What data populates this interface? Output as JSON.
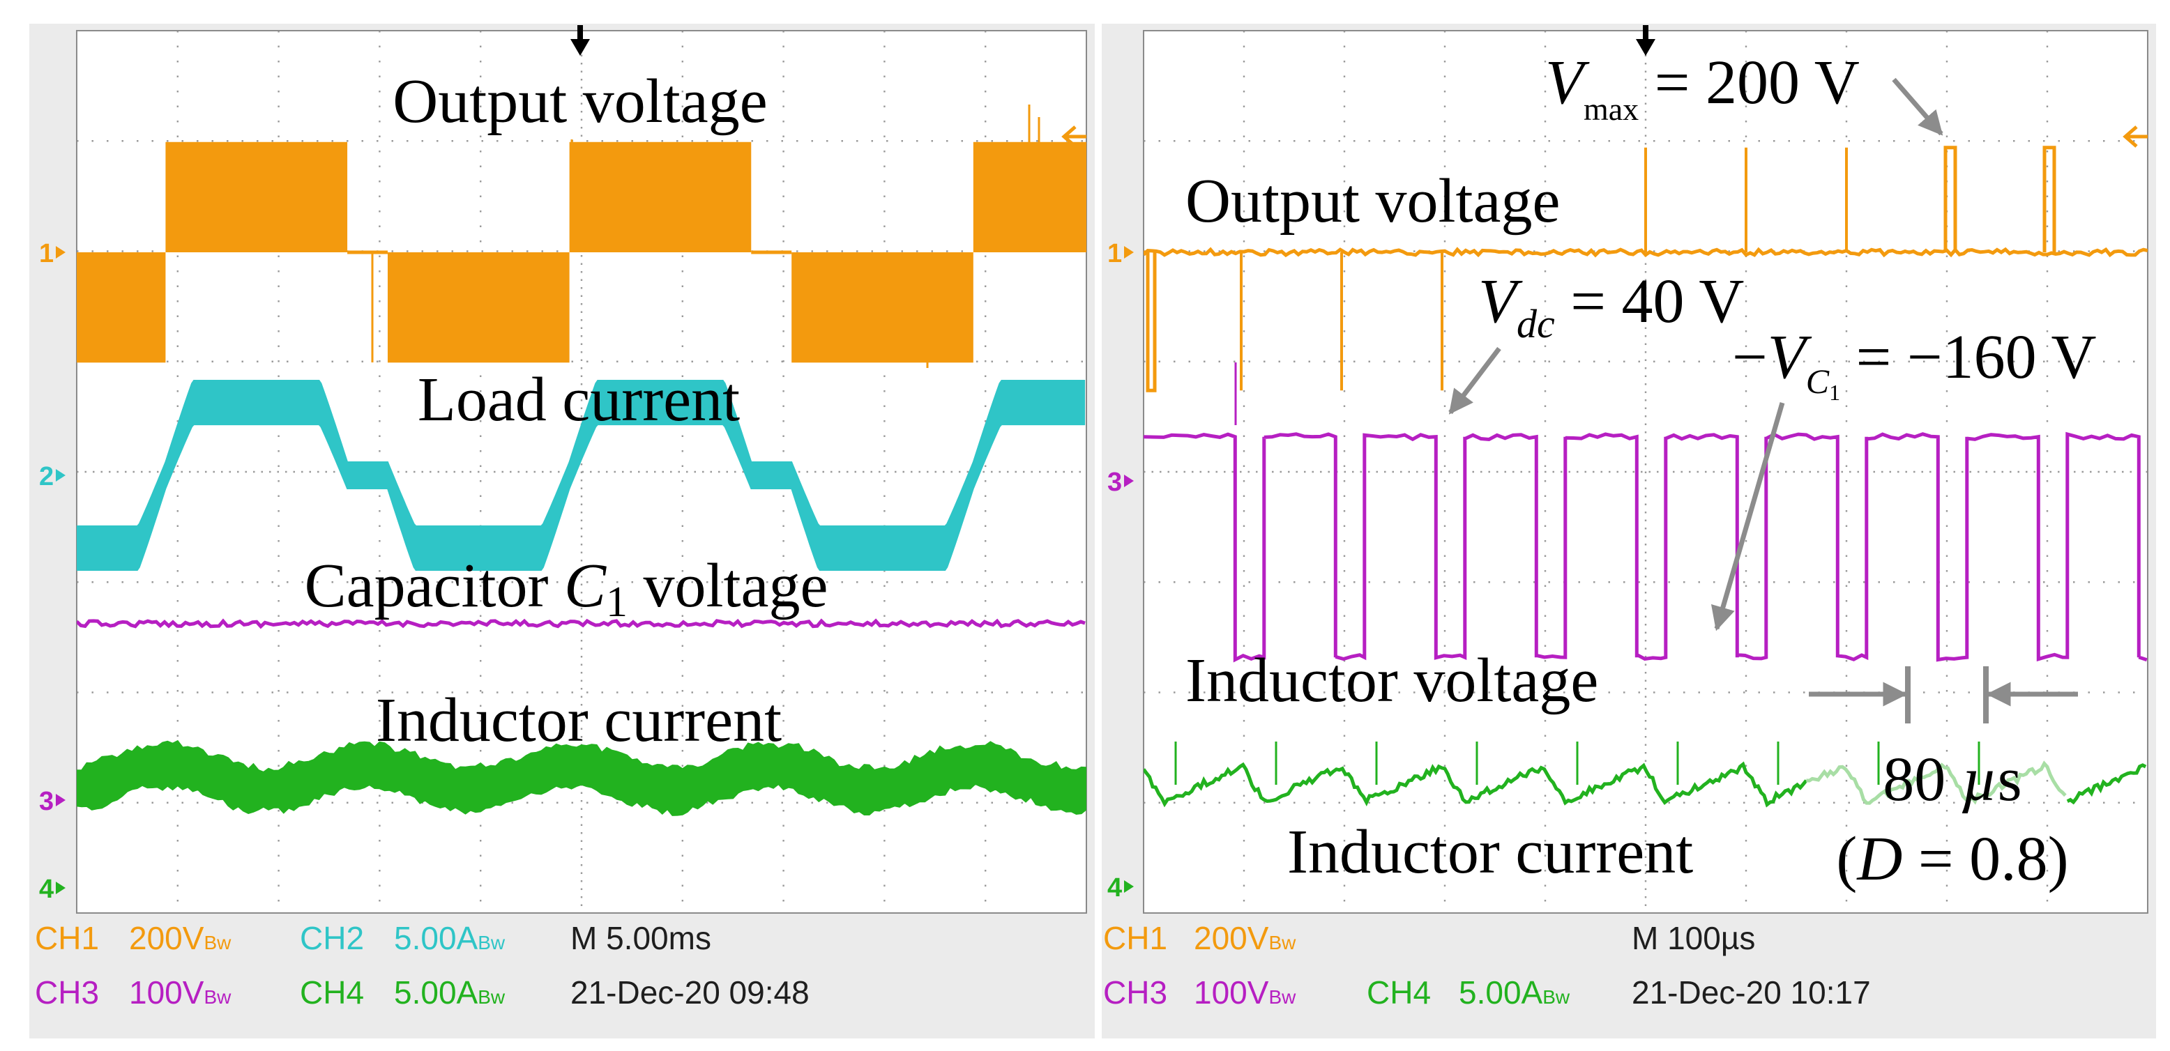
{
  "colors": {
    "ch1": "#F39A0E",
    "ch2": "#2FC5C7",
    "ch3": "#B61FC2",
    "ch4": "#22B21F",
    "ch4_faded": "#A8DEA5",
    "arrow": "#8C8C8C",
    "text": "#000000",
    "status_bar": "#EBEBEB",
    "status_black": "#1E1E1E"
  },
  "chart_data": [
    {
      "type": "line",
      "title": "Oscilloscope capture 1 (M 5.00ms)",
      "channel_markers": [
        "1",
        "2",
        "3",
        "4"
      ],
      "x": {
        "unit": "ms",
        "per_division": 5.0,
        "divisions": 10,
        "range": [
          0,
          50
        ]
      },
      "series": [
        {
          "name": "Output voltage",
          "channel": "CH1",
          "unit": "V",
          "per_division": 200,
          "shape": "square",
          "period_ms": 20,
          "amplitude_V": 200,
          "levels_V": [
            -200,
            200,
            0,
            -200,
            200,
            0,
            -200,
            200
          ],
          "level_edges_ms": [
            0,
            4.4,
            13.4,
            15.4,
            24.4,
            33.4,
            35.4,
            44.4,
            50
          ]
        },
        {
          "name": "Load current",
          "channel": "CH2",
          "unit": "A",
          "per_division": 5.0,
          "shape": "quasi-square",
          "period_ms": 20,
          "peak_A": 3.3
        },
        {
          "name": "Capacitor C1 voltage",
          "channel": "CH3",
          "unit": "V",
          "per_division": 100,
          "shape": "dc",
          "value_V": 160
        },
        {
          "name": "Inductor current",
          "channel": "CH4",
          "unit": "A",
          "per_division": 5.0,
          "shape": "dc with ripple",
          "mean_A": 5.0,
          "ripple_A": 1.8,
          "period_ms": 20
        }
      ],
      "annotations": {
        "output_voltage": "Output voltage",
        "load_current": "Load current",
        "capacitor_prefix": "Capacitor",
        "capacitor_var": "C",
        "capacitor_sub": "1",
        "capacitor_suffix": "voltage",
        "inductor_current": "Inductor current"
      },
      "status": {
        "row1": [
          {
            "ch": "CH1",
            "scale": "200V",
            "bw": "Bw"
          },
          {
            "ch": "CH2",
            "scale": "5.00A",
            "bw": "Bw"
          }
        ],
        "row2": [
          {
            "ch": "CH3",
            "scale": "100V",
            "bw": "Bw"
          },
          {
            "ch": "CH4",
            "scale": "5.00A",
            "bw": "Bw"
          }
        ],
        "timebase": "M 5.00ms",
        "timestamp": "21-Dec-20 09:48"
      }
    },
    {
      "type": "line",
      "title": "Oscilloscope capture 2 (M 100µs)",
      "channel_markers": [
        "1",
        "3",
        "4"
      ],
      "x": {
        "unit": "µs",
        "per_division": 100,
        "divisions": 10,
        "range": [
          0,
          1000
        ]
      },
      "series": [
        {
          "name": "Output voltage",
          "channel": "CH1",
          "unit": "V",
          "per_division": 200,
          "shape": "pulsed",
          "baseline_V": 0,
          "max_V": 200,
          "min_V": -200
        },
        {
          "name": "Inductor voltage",
          "channel": "CH3",
          "unit": "V",
          "per_division": 100,
          "shape": "pwm",
          "period_us": 100,
          "high_V": 40,
          "low_V": -160,
          "duty": 0.8
        },
        {
          "name": "Inductor current",
          "channel": "CH4",
          "unit": "A",
          "per_division": 5.0,
          "shape": "sawtooth",
          "period_us": 100,
          "mean_A": 5.0
        }
      ],
      "annotations": {
        "vmax_var": "V",
        "vmax_sub": "max",
        "vmax_rest": "= 200 V",
        "output_voltage": "Output voltage",
        "vdc_var": "V",
        "vdc_sub": "dc",
        "vdc_rest": "= 40 V",
        "vc1_minus": "−",
        "vc1_var": "V",
        "vc1_sub": "C",
        "vc1_subsub": "1",
        "vc1_rest": "= −160 V",
        "inductor_voltage": "Inductor voltage",
        "width_value": "80",
        "width_mu": "µ",
        "width_unit": "s",
        "duty_open": "(",
        "duty_var": "D",
        "duty_rest": " = 0.8)",
        "inductor_current": "Inductor current"
      },
      "status": {
        "row1": [
          {
            "ch": "CH1",
            "scale": "200V",
            "bw": "Bw"
          }
        ],
        "row2": [
          {
            "ch": "CH3",
            "scale": "100V",
            "bw": "Bw"
          },
          {
            "ch": "CH4",
            "scale": "5.00A",
            "bw": "Bw"
          }
        ],
        "timebase": "M 100µs",
        "timestamp": "21-Dec-20 10:17"
      }
    }
  ]
}
